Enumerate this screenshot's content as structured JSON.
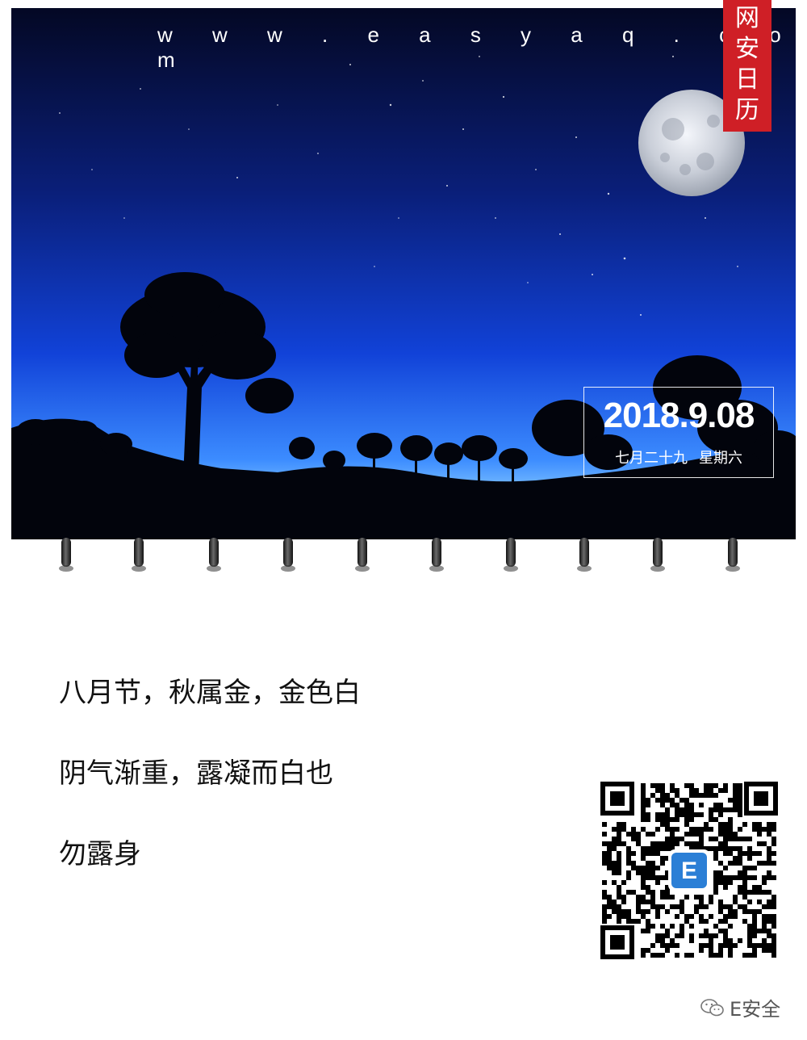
{
  "header": {
    "website": "w w w . e a s y a q . c o m"
  },
  "badge": {
    "chars": [
      "网",
      "安",
      "日",
      "历"
    ]
  },
  "date": {
    "gregorian": "2018.9.08",
    "lunar": "七月二十九",
    "weekday": "星期六"
  },
  "poem": {
    "line1": "八月节，秋属金，金色白",
    "line2": "阴气渐重，露凝而白也",
    "line3": "勿露身"
  },
  "qr": {
    "logo_letter": "E"
  },
  "footer": {
    "account": "E安全",
    "icon": "wechat-icon"
  },
  "colors": {
    "badge": "#cf1f26",
    "sky_top": "#050a2c",
    "sky_mid": "#0f2aa0",
    "sky_horizon": "#5aa6ff"
  }
}
